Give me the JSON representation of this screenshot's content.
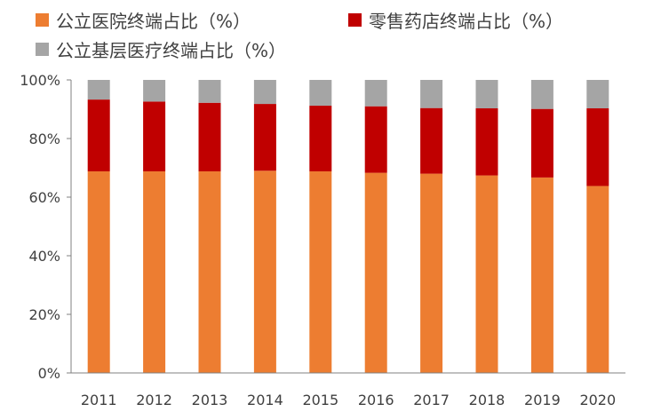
{
  "chart_data": {
    "type": "bar",
    "stacked": true,
    "title": "",
    "xlabel": "",
    "ylabel": "",
    "categories": [
      "2011",
      "2012",
      "2013",
      "2014",
      "2015",
      "2016",
      "2017",
      "2018",
      "2019",
      "2020"
    ],
    "series": [
      {
        "name": "公立医院终端占比（%）",
        "color": "#ED7D31",
        "values": [
          68.8,
          68.8,
          68.8,
          69.0,
          68.8,
          68.3,
          68.0,
          67.4,
          66.7,
          63.8
        ]
      },
      {
        "name": "零售药店终端占比（%）",
        "color": "#C00000",
        "values": [
          24.5,
          23.8,
          23.4,
          22.8,
          22.4,
          22.7,
          22.4,
          22.9,
          23.4,
          26.5
        ]
      },
      {
        "name": "公立基层医疗终端占比（%）",
        "color": "#A5A5A5",
        "values": [
          6.7,
          7.4,
          7.8,
          8.2,
          8.8,
          9.0,
          9.6,
          9.7,
          9.9,
          9.7
        ]
      }
    ],
    "ylim": [
      0,
      100
    ],
    "yticks": [
      0,
      20,
      40,
      60,
      80,
      100
    ],
    "ytick_labels": [
      "0%",
      "20%",
      "40%",
      "60%",
      "80%",
      "100%"
    ],
    "grid": false,
    "legend_position": "top-left"
  }
}
